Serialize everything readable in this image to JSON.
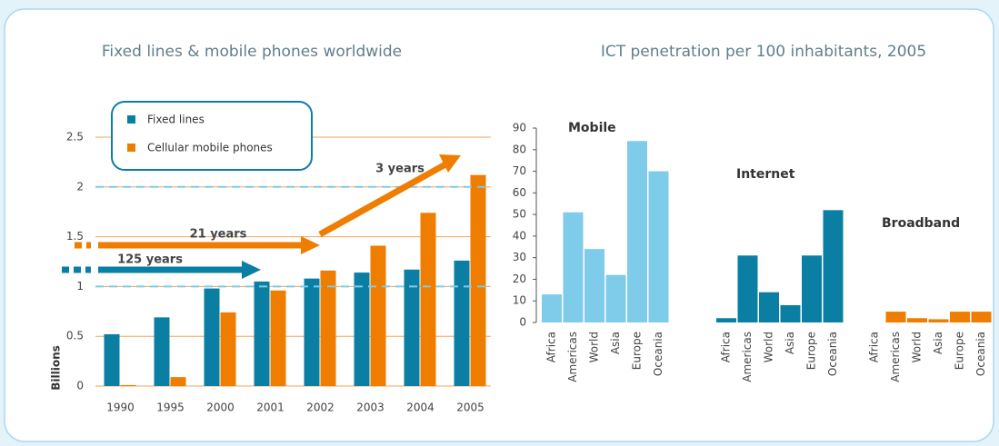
{
  "chart_data": [
    {
      "type": "bar",
      "title": "Fixed lines & mobile phones worldwide",
      "y_label": "Billions",
      "categories": [
        "1990",
        "1995",
        "2000",
        "2001",
        "2002",
        "2003",
        "2004",
        "2005"
      ],
      "series": [
        {
          "name": "Fixed lines",
          "color": "#0a7fa3",
          "values": [
            0.52,
            0.69,
            0.98,
            1.05,
            1.08,
            1.14,
            1.17,
            1.26
          ]
        },
        {
          "name": "Cellular mobile phones",
          "color": "#ef7d00",
          "values": [
            0.01,
            0.09,
            0.74,
            0.96,
            1.16,
            1.41,
            1.74,
            2.12
          ]
        }
      ],
      "ylim": [
        0,
        2.5
      ],
      "yticks": [
        0,
        0.5,
        1,
        1.5,
        2,
        2.5
      ],
      "grid": true,
      "reference_lines": [
        1,
        2
      ],
      "annotations": [
        "125 years",
        "21 years",
        "3 years"
      ]
    },
    {
      "type": "bar",
      "title": "ICT penetration per 100 inhabitants, 2005",
      "categories": [
        "Africa",
        "Americas",
        "World",
        "Asia",
        "Europe",
        "Oceania"
      ],
      "series": [
        {
          "name": "Mobile",
          "color": "#7ecbea",
          "values": [
            13,
            51,
            34,
            22,
            84,
            70
          ]
        },
        {
          "name": "Internet",
          "color": "#0a7fa3",
          "values": [
            2,
            31,
            14,
            8,
            31,
            52
          ]
        },
        {
          "name": "Broadband",
          "color": "#ef7d00",
          "values": [
            0,
            5,
            2,
            1.5,
            5,
            5
          ]
        }
      ],
      "ylim": [
        0,
        90
      ],
      "yticks": [
        0,
        10,
        20,
        30,
        40,
        50,
        60,
        70,
        80,
        90
      ],
      "grid": false
    }
  ]
}
